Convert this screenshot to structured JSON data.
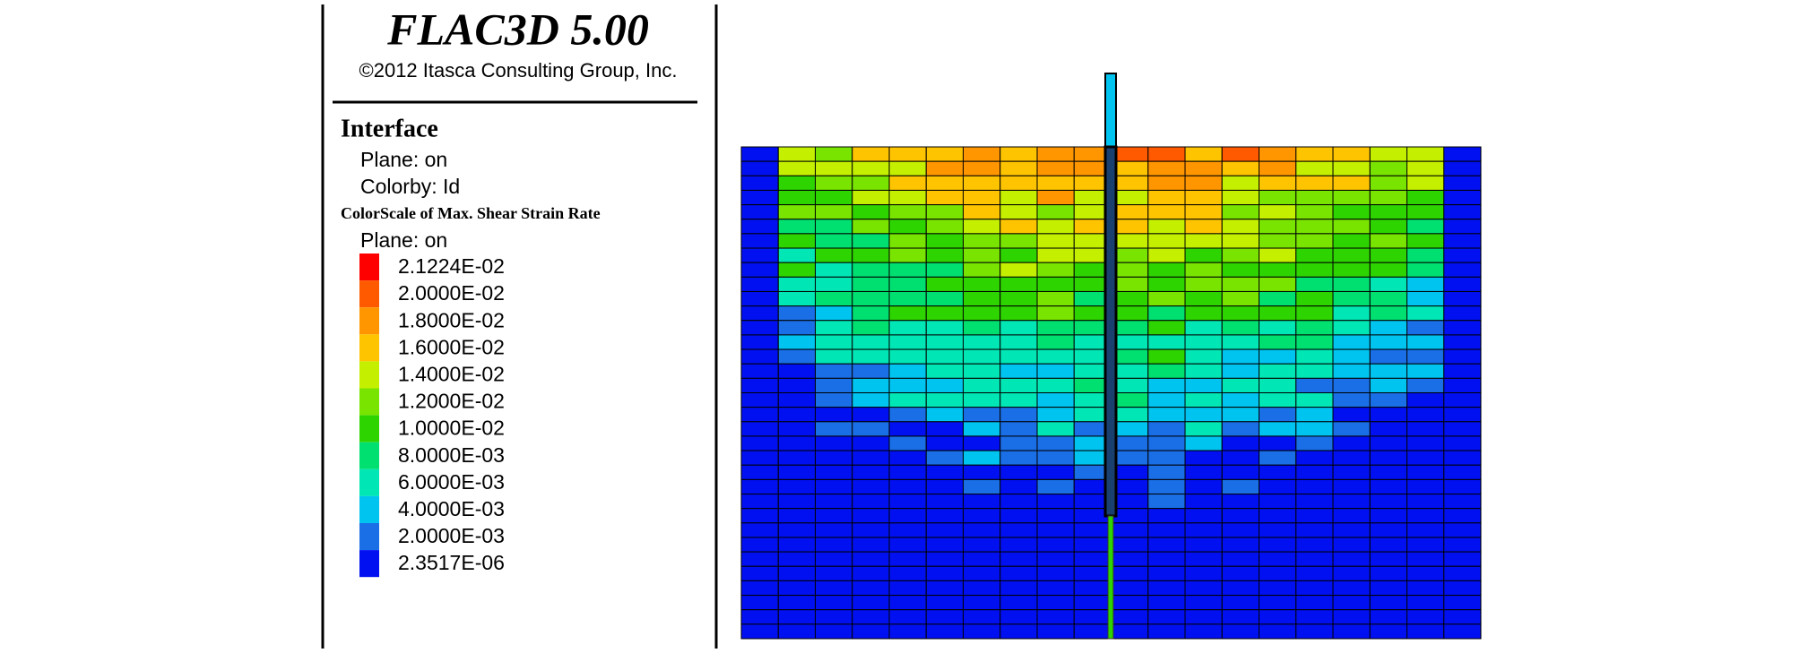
{
  "header": {
    "title": "FLAC3D 5.00",
    "copyright": "©2012 Itasca Consulting Group, Inc."
  },
  "interface": {
    "title": "Interface",
    "lines": [
      "Plane: on",
      "Colorby: Id"
    ]
  },
  "colorscale": {
    "title": "ColorScale of Max. Shear Strain Rate",
    "plane": "Plane: on",
    "entries": [
      {
        "label": "2.1224E-02",
        "color": "#ff0000"
      },
      {
        "label": "2.0000E-02",
        "color": "#ff5a00"
      },
      {
        "label": "1.8000E-02",
        "color": "#ff9600"
      },
      {
        "label": "1.6000E-02",
        "color": "#ffc400"
      },
      {
        "label": "1.4000E-02",
        "color": "#c4f000"
      },
      {
        "label": "1.2000E-02",
        "color": "#78e400"
      },
      {
        "label": "1.0000E-02",
        "color": "#2ed400"
      },
      {
        "label": "8.0000E-03",
        "color": "#00e070"
      },
      {
        "label": "6.0000E-03",
        "color": "#00e6b4"
      },
      {
        "label": "4.0000E-03",
        "color": "#00c4f0"
      },
      {
        "label": "2.0000E-03",
        "color": "#1a6ee6"
      },
      {
        "label": "2.3517E-06",
        "color": "#0010f0"
      }
    ]
  }
}
